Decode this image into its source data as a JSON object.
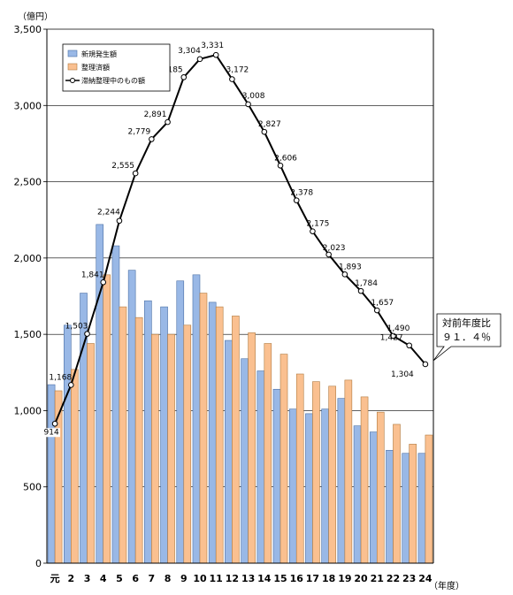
{
  "chart_data": {
    "type": "bar",
    "y_unit": "（億円）",
    "x_unit": "（年度）",
    "ylim": [
      0,
      3500
    ],
    "yticks": [
      "0",
      "500",
      "1,000",
      "1,500",
      "2,000",
      "2,500",
      "3,000",
      "3,500"
    ],
    "ytick_values": [
      0,
      500,
      1000,
      1500,
      2000,
      2500,
      3000,
      3500
    ],
    "categories": [
      "元",
      "2",
      "3",
      "4",
      "5",
      "6",
      "7",
      "8",
      "9",
      "10",
      "11",
      "12",
      "13",
      "14",
      "15",
      "16",
      "17",
      "18",
      "19",
      "20",
      "21",
      "22",
      "23",
      "24"
    ],
    "grid": true,
    "legend_position": "top-left",
    "series": [
      {
        "name": "新規発生額",
        "type": "bar",
        "color": "#99b8e6",
        "values": [
          1170,
          1560,
          1770,
          2220,
          2080,
          1920,
          1720,
          1680,
          1850,
          1890,
          1710,
          1460,
          1340,
          1260,
          1140,
          1010,
          980,
          1010,
          1080,
          900,
          860,
          740,
          720,
          720
        ]
      },
      {
        "name": "整理済額",
        "type": "bar",
        "color": "#fac090",
        "values": [
          1130,
          1270,
          1440,
          1890,
          1680,
          1610,
          1500,
          1500,
          1560,
          1770,
          1680,
          1620,
          1510,
          1440,
          1370,
          1240,
          1190,
          1160,
          1200,
          1090,
          990,
          910,
          780,
          840
        ]
      },
      {
        "name": "滞納整理中のもの額",
        "type": "line",
        "color": "#000000",
        "values": [
          914,
          1168,
          1503,
          1841,
          2244,
          2555,
          2779,
          2891,
          3185,
          3304,
          3331,
          3172,
          3008,
          2827,
          2606,
          2378,
          2175,
          2023,
          1893,
          1784,
          1657,
          1490,
          1427,
          1304
        ],
        "labels": [
          "914",
          "1,168",
          "1,503",
          "1,841",
          "2,244",
          "2,555",
          "2,779",
          "2,891",
          "3,185",
          "3,304",
          "3,331",
          "3,172",
          "3,008",
          "2,827",
          "2,606",
          "2,378",
          "2,175",
          "2,023",
          "1,893",
          "1,784",
          "1,657",
          "1,490",
          "1,427",
          "1,304"
        ]
      }
    ],
    "annotation": {
      "line1": "対前年度比",
      "line2": "９１．４％"
    }
  }
}
